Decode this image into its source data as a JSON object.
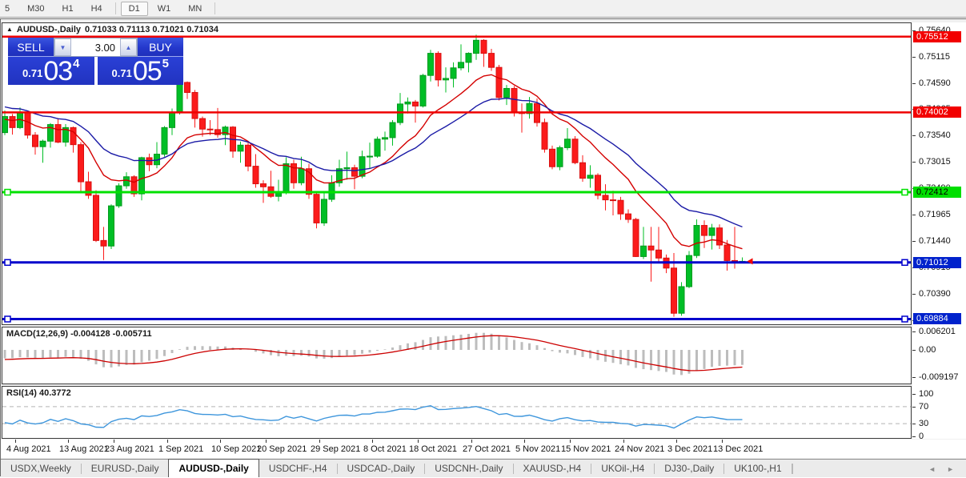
{
  "toolbar": {
    "timeframes": [
      "5",
      "M30",
      "H1",
      "H4",
      "D1",
      "W1",
      "MN"
    ],
    "active": "D1"
  },
  "chart_header": {
    "symbol": "AUDUSD-,Daily",
    "ohlc_text": "0.71033 0.71113 0.71021 0.71034",
    "open": "0.71033",
    "high": "0.71113",
    "low": "0.71021",
    "close": "0.71034"
  },
  "trade_panel": {
    "sell_label": "SELL",
    "buy_label": "BUY",
    "volume": "3.00",
    "sell_price": {
      "prefix": "0.71",
      "pips": "03",
      "point": "4"
    },
    "buy_price": {
      "prefix": "0.71",
      "pips": "05",
      "point": "5"
    }
  },
  "price_axis": {
    "ticks": [
      "0.75640",
      "0.75115",
      "0.74590",
      "0.74065",
      "0.73540",
      "0.73015",
      "0.72490",
      "0.71965",
      "0.71440",
      "0.70915",
      "0.70390",
      "0.69865"
    ],
    "min": 0.6978,
    "max": 0.7578
  },
  "hlines": [
    {
      "label": "0.75512",
      "price": 0.75512,
      "color": "#ee0000",
      "badge_bg": "#f20000",
      "badge_fg": "#ffffff",
      "width": 2.5,
      "handles": false
    },
    {
      "label": "0.74002",
      "price": 0.74002,
      "color": "#ee0000",
      "badge_bg": "#f20000",
      "badge_fg": "#ffffff",
      "width": 2.5,
      "handles": false
    },
    {
      "label": "0.72412",
      "price": 0.72412,
      "color": "#00e100",
      "badge_bg": "#00de00",
      "badge_fg": "#000000",
      "width": 3,
      "handles": true
    },
    {
      "label": "0.71012",
      "price": 0.71012,
      "color": "#0000cc",
      "badge_bg": "#0022cc",
      "badge_fg": "#ffffff",
      "width": 3,
      "handles": true
    },
    {
      "label": "0.69884",
      "price": 0.69884,
      "color": "#0000cc",
      "badge_bg": "#0022cc",
      "badge_fg": "#ffffff",
      "width": 3,
      "handles": true
    }
  ],
  "macd": {
    "label": "MACD(12,26,9) -0.004128 -0.005711",
    "params": [
      12,
      26,
      9
    ],
    "value": -0.004128,
    "signal": -0.005711,
    "axis_ticks": [
      "0.006201",
      "0.00",
      "-0.009197"
    ],
    "axis_values": [
      0.006201,
      0.0,
      -0.009197
    ]
  },
  "rsi": {
    "label": "RSI(14) 40.3772",
    "period": 14,
    "value": 40.3772,
    "axis_ticks": [
      "100",
      "70",
      "30",
      "0"
    ],
    "axis_values": [
      100,
      70,
      30,
      0
    ],
    "levels": [
      70,
      30
    ]
  },
  "date_axis": [
    {
      "text": "4 Aug 2021",
      "date": "2021.08.04"
    },
    {
      "text": "13 Aug 2021",
      "date": "2021.08.13"
    },
    {
      "text": "23 Aug 2021",
      "date": "2021.08.23"
    },
    {
      "text": "1 Sep 2021",
      "date": "2021.09.01"
    },
    {
      "text": "10 Sep 2021",
      "date": "2021.09.10"
    },
    {
      "text": "20 Sep 2021",
      "date": "2021.09.20"
    },
    {
      "text": "29 Sep 2021",
      "date": "2021.09.29"
    },
    {
      "text": "8 Oct 2021",
      "date": "2021.10.08"
    },
    {
      "text": "18 Oct 2021",
      "date": "2021.10.18"
    },
    {
      "text": "27 Oct 2021",
      "date": "2021.10.27"
    },
    {
      "text": "5 Nov 2021",
      "date": "2021.11.05"
    },
    {
      "text": "15 Nov 2021",
      "date": "2021.11.15"
    },
    {
      "text": "24 Nov 2021",
      "date": "2021.11.24"
    },
    {
      "text": "3 Dec 2021",
      "date": "2021.12.03"
    },
    {
      "text": "13 Dec 2021",
      "date": "2021.12.13"
    }
  ],
  "tabs": [
    {
      "label": "USDX,Weekly",
      "active": false
    },
    {
      "label": "EURUSD-,Daily",
      "active": false
    },
    {
      "label": "AUDUSD-,Daily",
      "active": true
    },
    {
      "label": "USDCHF-,H4",
      "active": false
    },
    {
      "label": "USDCAD-,Daily",
      "active": false
    },
    {
      "label": "USDCNH-,Daily",
      "active": false
    },
    {
      "label": "XAUUSD-,H4",
      "active": false
    },
    {
      "label": "UKOil-,H4",
      "active": false
    },
    {
      "label": "DJ30-,Daily",
      "active": false
    },
    {
      "label": "UK100-,H1",
      "active": false
    }
  ],
  "tab_scroll": {
    "left": "◄",
    "right": "►"
  },
  "colors": {
    "bull": "#00be26",
    "bull_edge": "#009a1c",
    "bear": "#fb1b1b",
    "bear_edge": "#d81010",
    "ma_fast": "#d40000",
    "ma_slow": "#1a1aa6",
    "macd_hist": "#bdbdbd",
    "macd_signal": "#cc0000",
    "rsi_line": "#3e96dc",
    "rsi_level": "#b3b3b3",
    "price_marker": "#f20000"
  },
  "chart_data": {
    "type": "candlestick",
    "symbol": "AUDUSD",
    "timeframe": "Daily",
    "overlays": [
      {
        "name": "ma-fast",
        "method": "ema",
        "period": 12,
        "color_key": "ma_fast"
      },
      {
        "name": "ma-slow",
        "method": "ema",
        "period": 24,
        "color_key": "ma_slow"
      }
    ],
    "warmup_closes": [
      0.752,
      0.75,
      0.7475,
      0.7455,
      0.744,
      0.742,
      0.74,
      0.7385,
      0.736,
      0.7335,
      0.7345,
      0.7355,
      0.737,
      0.7385,
      0.7395,
      0.74,
      0.739,
      0.738,
      0.737,
      0.7362
    ],
    "candles": [
      [
        "2021.08.03",
        0.736,
        0.7404,
        0.7355,
        0.7392
      ],
      [
        "2021.08.04",
        0.7392,
        0.7397,
        0.7356,
        0.737
      ],
      [
        "2021.08.05",
        0.737,
        0.741,
        0.7367,
        0.74
      ],
      [
        "2021.08.06",
        0.74,
        0.7404,
        0.7348,
        0.7355
      ],
      [
        "2021.08.09",
        0.7355,
        0.7361,
        0.7316,
        0.7332
      ],
      [
        "2021.08.10",
        0.7332,
        0.7346,
        0.73,
        0.7343
      ],
      [
        "2021.08.11",
        0.7343,
        0.7379,
        0.733,
        0.7376
      ],
      [
        "2021.08.12",
        0.7376,
        0.7389,
        0.7339,
        0.7341
      ],
      [
        "2021.08.13",
        0.7341,
        0.7377,
        0.7332,
        0.737
      ],
      [
        "2021.08.16",
        0.737,
        0.7372,
        0.732,
        0.7336
      ],
      [
        "2021.08.17",
        0.7336,
        0.7341,
        0.724,
        0.7262
      ],
      [
        "2021.08.18",
        0.7262,
        0.7282,
        0.7228,
        0.7235
      ],
      [
        "2021.08.19",
        0.7235,
        0.7245,
        0.7142,
        0.7145
      ],
      [
        "2021.08.20",
        0.7145,
        0.7172,
        0.7106,
        0.7134
      ],
      [
        "2021.08.23",
        0.7134,
        0.7217,
        0.7128,
        0.7214
      ],
      [
        "2021.08.24",
        0.7214,
        0.7259,
        0.721,
        0.7254
      ],
      [
        "2021.08.25",
        0.7254,
        0.7281,
        0.7248,
        0.7272
      ],
      [
        "2021.08.26",
        0.7272,
        0.7275,
        0.7232,
        0.7238
      ],
      [
        "2021.08.27",
        0.7238,
        0.7312,
        0.7225,
        0.731
      ],
      [
        "2021.08.30",
        0.731,
        0.7318,
        0.7283,
        0.7296
      ],
      [
        "2021.08.31",
        0.7296,
        0.7341,
        0.7289,
        0.7317
      ],
      [
        "2021.09.01",
        0.7317,
        0.7373,
        0.7312,
        0.737
      ],
      [
        "2021.09.02",
        0.737,
        0.7408,
        0.7355,
        0.74
      ],
      [
        "2021.09.03",
        0.74,
        0.7478,
        0.7396,
        0.746
      ],
      [
        "2021.09.06",
        0.746,
        0.7462,
        0.7427,
        0.744
      ],
      [
        "2021.09.07",
        0.744,
        0.7445,
        0.737,
        0.7388
      ],
      [
        "2021.09.08",
        0.7388,
        0.7392,
        0.7352,
        0.7367
      ],
      [
        "2021.09.09",
        0.7367,
        0.7385,
        0.7355,
        0.7366
      ],
      [
        "2021.09.10",
        0.7366,
        0.7409,
        0.735,
        0.7356
      ],
      [
        "2021.09.13",
        0.7356,
        0.7374,
        0.7335,
        0.7371
      ],
      [
        "2021.09.14",
        0.7371,
        0.7373,
        0.731,
        0.7323
      ],
      [
        "2021.09.15",
        0.7323,
        0.7342,
        0.73,
        0.7335
      ],
      [
        "2021.09.16",
        0.7335,
        0.7342,
        0.7283,
        0.7293
      ],
      [
        "2021.09.17",
        0.7293,
        0.7317,
        0.725,
        0.7258
      ],
      [
        "2021.09.20",
        0.7258,
        0.7265,
        0.722,
        0.7252
      ],
      [
        "2021.09.21",
        0.7252,
        0.7284,
        0.723,
        0.7233
      ],
      [
        "2021.09.22",
        0.7233,
        0.7266,
        0.7223,
        0.724
      ],
      [
        "2021.09.23",
        0.724,
        0.7311,
        0.7237,
        0.7298
      ],
      [
        "2021.09.24",
        0.7298,
        0.7306,
        0.7248,
        0.726
      ],
      [
        "2021.09.27",
        0.726,
        0.7312,
        0.7255,
        0.7288
      ],
      [
        "2021.09.28",
        0.7288,
        0.7298,
        0.7228,
        0.7237
      ],
      [
        "2021.09.29",
        0.7237,
        0.7242,
        0.7169,
        0.718
      ],
      [
        "2021.09.30",
        0.718,
        0.7241,
        0.7174,
        0.7227
      ],
      [
        "2021.10.01",
        0.7227,
        0.7275,
        0.7222,
        0.726
      ],
      [
        "2021.10.04",
        0.726,
        0.7306,
        0.7252,
        0.7288
      ],
      [
        "2021.10.05",
        0.7288,
        0.7322,
        0.7266,
        0.729
      ],
      [
        "2021.10.06",
        0.729,
        0.7296,
        0.7247,
        0.7273
      ],
      [
        "2021.10.07",
        0.7273,
        0.7324,
        0.7269,
        0.7312
      ],
      [
        "2021.10.08",
        0.7312,
        0.734,
        0.7288,
        0.7313
      ],
      [
        "2021.10.11",
        0.7313,
        0.7352,
        0.731,
        0.7347
      ],
      [
        "2021.10.12",
        0.7347,
        0.7362,
        0.7324,
        0.735
      ],
      [
        "2021.10.13",
        0.735,
        0.7385,
        0.7334,
        0.738
      ],
      [
        "2021.10.14",
        0.738,
        0.7439,
        0.7375,
        0.7417
      ],
      [
        "2021.10.15",
        0.7417,
        0.743,
        0.7398,
        0.7421
      ],
      [
        "2021.10.18",
        0.7421,
        0.7425,
        0.738,
        0.7413
      ],
      [
        "2021.10.19",
        0.7413,
        0.7477,
        0.741,
        0.7474
      ],
      [
        "2021.10.20",
        0.7474,
        0.7525,
        0.7462,
        0.7518
      ],
      [
        "2021.10.21",
        0.7518,
        0.7522,
        0.7452,
        0.7465
      ],
      [
        "2021.10.22",
        0.7465,
        0.749,
        0.744,
        0.7468
      ],
      [
        "2021.10.25",
        0.7468,
        0.75,
        0.745,
        0.7489
      ],
      [
        "2021.10.26",
        0.7489,
        0.7536,
        0.7484,
        0.75
      ],
      [
        "2021.10.27",
        0.75,
        0.752,
        0.748,
        0.7518
      ],
      [
        "2021.10.28",
        0.7518,
        0.7555,
        0.7505,
        0.7544
      ],
      [
        "2021.10.29",
        0.7544,
        0.7546,
        0.7491,
        0.7518
      ],
      [
        "2021.11.01",
        0.7518,
        0.7527,
        0.7483,
        0.749
      ],
      [
        "2021.11.02",
        0.749,
        0.7495,
        0.7424,
        0.743
      ],
      [
        "2021.11.03",
        0.743,
        0.7455,
        0.7415,
        0.7448
      ],
      [
        "2021.11.04",
        0.7448,
        0.7453,
        0.7392,
        0.74
      ],
      [
        "2021.11.05",
        0.74,
        0.7418,
        0.736,
        0.7398
      ],
      [
        "2021.11.08",
        0.7398,
        0.7431,
        0.7388,
        0.7418
      ],
      [
        "2021.11.09",
        0.7418,
        0.7428,
        0.7372,
        0.738
      ],
      [
        "2021.11.10",
        0.738,
        0.7388,
        0.732,
        0.7327
      ],
      [
        "2021.11.11",
        0.7327,
        0.7334,
        0.7287,
        0.7292
      ],
      [
        "2021.11.12",
        0.7292,
        0.7334,
        0.7285,
        0.733
      ],
      [
        "2021.11.15",
        0.733,
        0.7369,
        0.7325,
        0.7347
      ],
      [
        "2021.11.16",
        0.7347,
        0.7353,
        0.7297,
        0.73
      ],
      [
        "2021.11.17",
        0.73,
        0.7315,
        0.7262,
        0.7269
      ],
      [
        "2021.11.18",
        0.7269,
        0.7295,
        0.725,
        0.7275
      ],
      [
        "2021.11.19",
        0.7275,
        0.7279,
        0.7227,
        0.7235
      ],
      [
        "2021.11.22",
        0.7235,
        0.7257,
        0.7205,
        0.7226
      ],
      [
        "2021.11.23",
        0.7226,
        0.7244,
        0.7195,
        0.7225
      ],
      [
        "2021.11.24",
        0.7225,
        0.7232,
        0.7186,
        0.7198
      ],
      [
        "2021.11.25",
        0.7198,
        0.7207,
        0.718,
        0.7187
      ],
      [
        "2021.11.26",
        0.7187,
        0.719,
        0.7112,
        0.7113
      ],
      [
        "2021.11.29",
        0.7113,
        0.7172,
        0.7108,
        0.7134
      ],
      [
        "2021.11.30",
        0.7134,
        0.7172,
        0.7063,
        0.7126
      ],
      [
        "2021.12.01",
        0.7126,
        0.7172,
        0.71,
        0.711
      ],
      [
        "2021.12.02",
        0.711,
        0.7117,
        0.708,
        0.709
      ],
      [
        "2021.12.03",
        0.709,
        0.712,
        0.6993,
        0.7
      ],
      [
        "2021.12.06",
        0.7,
        0.7062,
        0.6995,
        0.7053
      ],
      [
        "2021.12.07",
        0.7053,
        0.7124,
        0.705,
        0.7115
      ],
      [
        "2021.12.08",
        0.7115,
        0.7187,
        0.711,
        0.7175
      ],
      [
        "2021.12.09",
        0.7175,
        0.7185,
        0.713,
        0.7155
      ],
      [
        "2021.12.10",
        0.7155,
        0.7178,
        0.7127,
        0.717
      ],
      [
        "2021.12.13",
        0.717,
        0.7177,
        0.7128,
        0.7136
      ],
      [
        "2021.12.14",
        0.7136,
        0.7146,
        0.7085,
        0.7105
      ],
      [
        "2021.12.15",
        0.7105,
        0.7172,
        0.7089,
        0.7103
      ],
      [
        "2021.12.16",
        0.71033,
        0.71113,
        0.71021,
        0.71034
      ]
    ]
  }
}
